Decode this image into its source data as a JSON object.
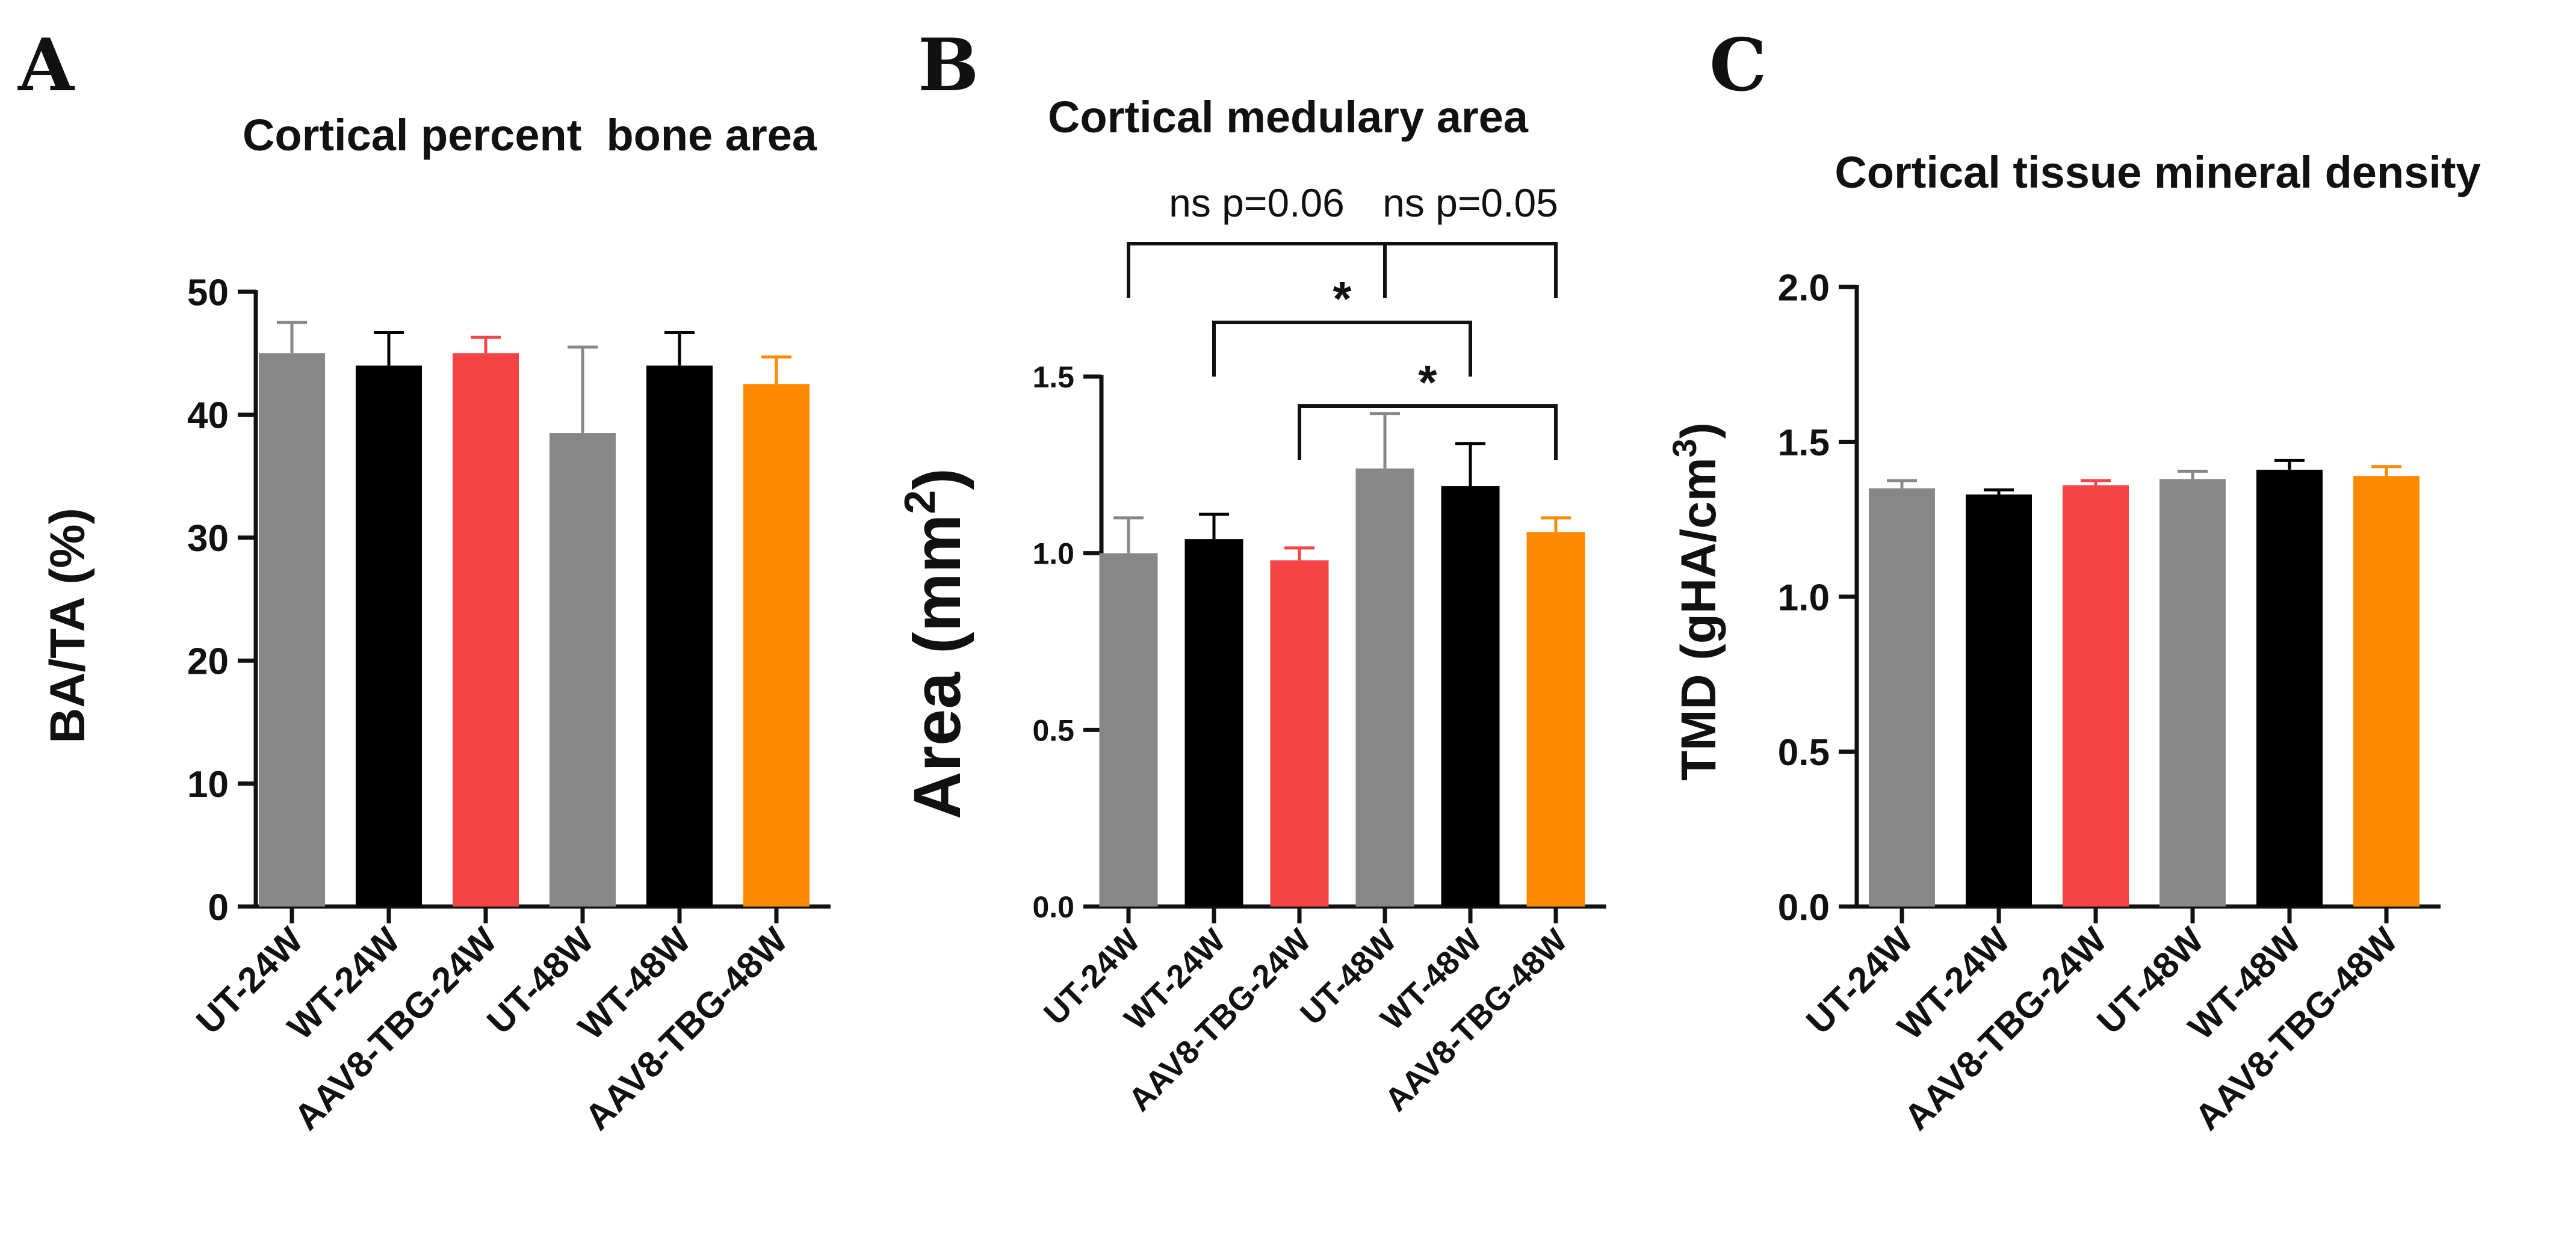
{
  "chart_data": [
    {
      "type": "bar",
      "panel": "A",
      "title": "Cortical percent  bone area",
      "ylabel": "BA/TA (%)",
      "ylim": [
        0,
        50
      ],
      "yticks": [
        "0",
        "10",
        "20",
        "30",
        "40",
        "50"
      ],
      "categories": [
        "UT-24W",
        "WT-24W",
        "AAV8-TBG-24W",
        "UT-48W",
        "WT-48W",
        "AAV8-TBG-48W"
      ],
      "values": [
        45.0,
        44.0,
        45.0,
        38.5,
        44.0,
        42.5
      ],
      "errors": [
        2.5,
        2.7,
        1.3,
        7.0,
        2.7,
        2.2
      ],
      "colors": [
        "#878787",
        "#000000",
        "#F44444",
        "#878787",
        "#000000",
        "#FF8A00"
      ],
      "annotations": []
    },
    {
      "type": "bar",
      "panel": "B",
      "title": "Cortical medulary area",
      "ylabel": "Area (mm²)",
      "ylabel_main": "Area (mm",
      "ylabel_sup": "2",
      "ylabel_end": ")",
      "ylim": [
        0,
        1.5
      ],
      "yticks": [
        "0.0",
        "0.5",
        "1.0",
        "1.5"
      ],
      "categories": [
        "UT-24W",
        "WT-24W",
        "AAV8-TBG-24W",
        "UT-48W",
        "WT-48W",
        "AAV8-TBG-48W"
      ],
      "values": [
        1.0,
        1.04,
        0.98,
        1.24,
        1.19,
        1.06
      ],
      "errors": [
        0.1,
        0.07,
        0.035,
        0.155,
        0.12,
        0.04
      ],
      "colors": [
        "#878787",
        "#000000",
        "#F44444",
        "#878787",
        "#000000",
        "#FF8A00"
      ],
      "annotations": [
        {
          "from": 0,
          "to": 3,
          "level": 1,
          "label": "ns  p=0.06"
        },
        {
          "from": 3,
          "to": 5,
          "level": 1,
          "label": "ns   p=0.05"
        },
        {
          "from": 1,
          "to": 4,
          "level": 2,
          "label": "*"
        },
        {
          "from": 2,
          "to": 5,
          "level": 3,
          "label": "*"
        }
      ]
    },
    {
      "type": "bar",
      "panel": "C",
      "title": "Cortical tissue mineral density",
      "ylabel": "TMD (gHA/cm³)",
      "ylabel_main": "TMD (gHA/cm",
      "ylabel_sup": "3",
      "ylabel_end": ")",
      "ylim": [
        0,
        2.0
      ],
      "yticks": [
        "0.0",
        "0.5",
        "1.0",
        "1.5",
        "2.0"
      ],
      "categories": [
        "UT-24W",
        "WT-24W",
        "AAV8-TBG-24W",
        "UT-48W",
        "WT-48W",
        "AAV8-TBG-48W"
      ],
      "values": [
        1.35,
        1.33,
        1.36,
        1.38,
        1.41,
        1.39
      ],
      "errors": [
        0.025,
        0.015,
        0.015,
        0.025,
        0.03,
        0.03
      ],
      "colors": [
        "#878787",
        "#000000",
        "#F44444",
        "#878787",
        "#000000",
        "#FF8A00"
      ],
      "annotations": []
    }
  ]
}
